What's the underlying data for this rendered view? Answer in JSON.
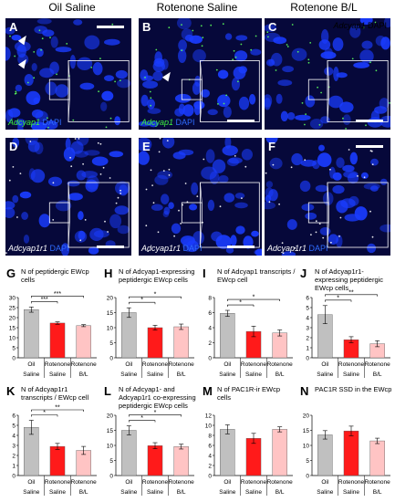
{
  "column_titles": [
    "Oil Saline",
    "Rotenone Saline",
    "Rotenone B/L"
  ],
  "panels": [
    {
      "label": "A",
      "stain_gene": "Adcyap1",
      "gene_color": "green",
      "dapi": "DAPI"
    },
    {
      "label": "B",
      "stain_gene": "Adcyap1",
      "gene_color": "green",
      "dapi": "DAPI"
    },
    {
      "label": "C",
      "stain_gene": "Adcyap1",
      "gene_color": "green",
      "dapi": "DAPI"
    },
    {
      "label": "D",
      "stain_gene": "Adcyap1r1",
      "gene_color": "white",
      "dapi": "DAPI"
    },
    {
      "label": "E",
      "stain_gene": "Adcyap1r1",
      "gene_color": "white",
      "dapi": "DAPI"
    },
    {
      "label": "F",
      "stain_gene": "Adcyap1r1",
      "gene_color": "white",
      "dapi": "DAPI"
    }
  ],
  "bar_colors": [
    "#c0c0c0",
    "#ff1a1a",
    "#ffc4c4"
  ],
  "x_groups": [
    [
      "Oil",
      "Saline"
    ],
    [
      "Rotenone",
      "Saline"
    ],
    [
      "Rotenone",
      "B/L"
    ]
  ],
  "chart_data": [
    {
      "label": "G",
      "type": "bar",
      "title": "N of peptidergic EWcp cells",
      "ylim": [
        0,
        30
      ],
      "yticks": [
        "0",
        "5",
        "10",
        "15",
        "20",
        "25",
        "30"
      ],
      "values": [
        24,
        17.3,
        16
      ],
      "errors": [
        1.3,
        0.6,
        0.5
      ],
      "sig": [
        "***",
        "***"
      ]
    },
    {
      "label": "H",
      "type": "bar",
      "title": "N of Adcyap1-expressing peptidergic EWcp cells",
      "ylim": [
        0,
        20
      ],
      "yticks": [
        "0",
        "5",
        "10",
        "15",
        "20"
      ],
      "values": [
        15,
        10,
        10.3
      ],
      "errors": [
        1.6,
        0.8,
        0.9
      ],
      "sig": [
        "*",
        "*"
      ]
    },
    {
      "label": "I",
      "type": "bar",
      "title": "N of Adcyap1 transcripts / EWcp cell",
      "ylim": [
        0,
        8
      ],
      "yticks": [
        "0",
        "2",
        "4",
        "6",
        "8"
      ],
      "values": [
        5.9,
        3.5,
        3.3
      ],
      "errors": [
        0.4,
        0.7,
        0.4
      ],
      "sig": [
        "*",
        "*"
      ]
    },
    {
      "label": "J",
      "type": "bar",
      "title": "N of Adcyap1r1-expressing peptidergic EWcp cells",
      "ylim": [
        0,
        6
      ],
      "yticks": [
        "0",
        "1",
        "2",
        "3",
        "4",
        "5",
        "6"
      ],
      "values": [
        4.3,
        1.8,
        1.4
      ],
      "errors": [
        0.9,
        0.3,
        0.3
      ],
      "sig": [
        "*",
        "**"
      ]
    },
    {
      "label": "K",
      "type": "bar",
      "title": "N of Adcyap1r1 transcripts / EWcp cell",
      "ylim": [
        0,
        6
      ],
      "yticks": [
        "0",
        "1",
        "2",
        "3",
        "4",
        "5",
        "6"
      ],
      "values": [
        4.8,
        2.9,
        2.5
      ],
      "errors": [
        0.7,
        0.3,
        0.4
      ],
      "sig": [
        "*",
        "**"
      ]
    },
    {
      "label": "L",
      "type": "bar",
      "title": "N of Adcyap1- and Adcyap1r1 co-expressing peptidergic EWcp cells",
      "ylim": [
        0,
        20
      ],
      "yticks": [
        "0",
        "5",
        "10",
        "15",
        "20"
      ],
      "values": [
        15,
        9.9,
        9.6
      ],
      "errors": [
        1.5,
        1,
        0.8
      ],
      "sig": [
        "*",
        "*"
      ]
    },
    {
      "label": "M",
      "type": "bar",
      "title": "N of PAC1R-ir EWcp cells",
      "ylim": [
        0,
        12
      ],
      "yticks": [
        "0",
        "2",
        "4",
        "6",
        "8",
        "10",
        "12"
      ],
      "values": [
        9.2,
        7.4,
        9.2
      ],
      "errors": [
        0.9,
        1,
        0.5
      ],
      "sig": []
    },
    {
      "label": "N",
      "type": "bar",
      "title": "PAC1R SSD in the EWcp",
      "ylim": [
        0,
        20
      ],
      "yticks": [
        "0",
        "5",
        "10",
        "15",
        "20"
      ],
      "values": [
        13.5,
        14.8,
        11.5
      ],
      "errors": [
        1.4,
        1.6,
        0.9
      ],
      "sig": []
    }
  ]
}
